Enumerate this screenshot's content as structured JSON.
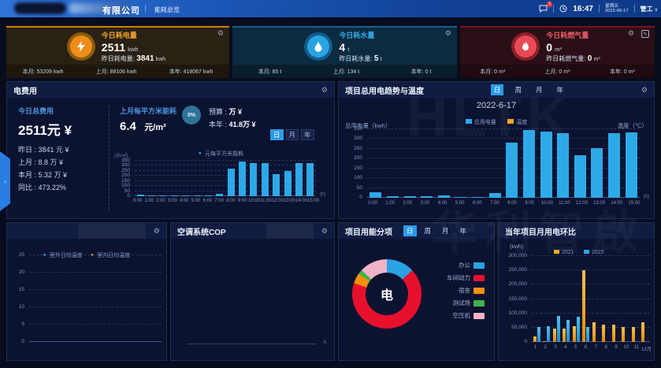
{
  "topbar": {
    "company_suffix": "有限公司",
    "menu_overview": "能耗总览",
    "message_badge": "1",
    "time": "16:47",
    "weekday": "星期五",
    "date": "2022-06-17",
    "user": "管工"
  },
  "kpi_cards": [
    {
      "title": "今日耗电量",
      "value": "2511",
      "unit": "kwh",
      "sub_label": "昨日耗电量:",
      "sub_value": "3841",
      "sub_unit": "kwh",
      "footer": [
        "本月: 53209 kwh",
        "上月: 88106 kwh",
        "本年: 418067 kwh"
      ]
    },
    {
      "title": "今日耗水量",
      "value": "4",
      "unit": "t",
      "sub_label": "昨日耗水量:",
      "sub_value": "5",
      "sub_unit": "t",
      "footer": [
        "本月: 85 t",
        "上月: 134 t",
        "本年: 0 t"
      ]
    },
    {
      "title": "今日耗燃气量",
      "value": "0",
      "unit": "m³",
      "sub_label": "昨日耗燃气量:",
      "sub_value": "0",
      "sub_unit": "m³",
      "footer": [
        "本月: 0 m³",
        "上月: 0 m³",
        "本年: 0 m³"
      ]
    }
  ],
  "panels": {
    "cost": {
      "title": "电费用",
      "today_label": "今日总费用",
      "today_value": "2511元 ¥",
      "rows": [
        "昨日 : 3841 元 ¥",
        "上月 : 8.8 万 ¥",
        "本月 : 5.32 万 ¥",
        "同比 : 473.22%"
      ],
      "sqm_label": "上月每平方米能耗",
      "sqm_value": "6.4",
      "sqm_unit": "元/m²",
      "progress": "0%",
      "budget_label": "预算 :",
      "budget_value": "万 ¥",
      "year_label": "本年 :",
      "year_value": "41.8万 ¥",
      "tabs": [
        "日",
        "月",
        "年"
      ]
    },
    "trend": {
      "title": "项目总用电趋势与温度",
      "tabs": [
        "日",
        "周",
        "月",
        "年"
      ]
    },
    "cop": {
      "title": "空调系统COP",
      "x_unit": "h"
    },
    "distribution": {
      "title": "项目用能分项",
      "tabs": [
        "日",
        "周",
        "月",
        "年"
      ]
    },
    "monthly": {
      "title": "当年项目月用电环比"
    }
  },
  "watermark": {
    "line1": "HLTK",
    "line2": "华利智啟"
  },
  "colors": {
    "accent_blue": "#2b9ce8",
    "bar_blue": "#2da9e8",
    "bar_orange": "#f5a623",
    "power_accent": "#f0a22b",
    "water_accent": "#29a3e3",
    "gas_accent": "#ea5a64"
  },
  "chart_data": [
    {
      "name": "hourly_cost_per_sqm",
      "type": "bar",
      "ylabel": "(元/㎡)",
      "xlabel": "(h)",
      "legend": [
        "元每平方米能耗"
      ],
      "ylim": [
        0,
        350
      ],
      "yticks": [
        0,
        50,
        100,
        150,
        200,
        250,
        300,
        350
      ],
      "categories": [
        "0:00",
        "1:00",
        "2:00",
        "3:00",
        "4:00",
        "5:00",
        "6:00",
        "7:00",
        "8:00",
        "9:00",
        "10:00",
        "11:00",
        "12:00",
        "13:00",
        "14:00",
        "15:00"
      ],
      "values": [
        15,
        8,
        5,
        5,
        5,
        5,
        5,
        20,
        270,
        345,
        330,
        325,
        215,
        250,
        330,
        330
      ]
    },
    {
      "name": "daily_power_and_temperature",
      "type": "bar",
      "title": "2022-6-17",
      "legend": [
        "总用电量",
        "温度"
      ],
      "ylabel": "总用电量（kwh）",
      "ylabel_right": "温度（℃）",
      "xlabel": "(h)",
      "ylim": [
        0,
        350
      ],
      "yticks": [
        0,
        50,
        100,
        150,
        200,
        250,
        300,
        350
      ],
      "categories": [
        "0:00",
        "1:00",
        "2:00",
        "3:00",
        "4:00",
        "5:00",
        "6:00",
        "7:00",
        "8:00",
        "9:00",
        "10:00",
        "11:00",
        "12:00",
        "13:00",
        "14:00",
        "15:00"
      ],
      "values": [
        28,
        10,
        8,
        8,
        12,
        5,
        3,
        25,
        280,
        345,
        338,
        330,
        218,
        255,
        330,
        335
      ]
    },
    {
      "name": "indoor_outdoor_temperature",
      "type": "line",
      "ylim": [
        0,
        25
      ],
      "yticks": [
        0,
        5,
        10,
        15,
        20,
        25
      ],
      "series": [
        {
          "name": "室外日均温度",
          "values": []
        },
        {
          "name": "室内日均温度",
          "values": []
        }
      ]
    },
    {
      "name": "ac_cop",
      "type": "line",
      "xlabel": "h",
      "series": []
    },
    {
      "name": "energy_distribution",
      "type": "pie",
      "center_label": "电",
      "labels": [
        "办公",
        "车间动力",
        "宿舍",
        "测试场",
        "空压机"
      ],
      "values": [
        13,
        67,
        5,
        2,
        13
      ],
      "colors": [
        "#29a3e3",
        "#e8112d",
        "#f5900c",
        "#3db54a",
        "#f2b3c6"
      ]
    },
    {
      "name": "monthly_yoy",
      "type": "bar",
      "ylabel": "(kwh)",
      "ylim": [
        0,
        300000
      ],
      "yticks": [
        "0",
        "50,000",
        "100,000",
        "150,000",
        "200,000",
        "250,000",
        "300,000"
      ],
      "categories": [
        "1",
        "2",
        "3",
        "4",
        "5",
        "6",
        "7",
        "8",
        "9",
        "10",
        "11",
        "12月"
      ],
      "series": [
        {
          "name": "2021",
          "color": "#f5a623",
          "values": [
            18000,
            4000,
            48000,
            48000,
            55000,
            250000,
            68000,
            60000,
            60000,
            53000,
            53000,
            68000
          ]
        },
        {
          "name": "2022",
          "color": "#2da9e8",
          "values": [
            52000,
            55000,
            90000,
            78000,
            88000,
            52000,
            0,
            0,
            0,
            0,
            0,
            0
          ]
        }
      ]
    }
  ]
}
